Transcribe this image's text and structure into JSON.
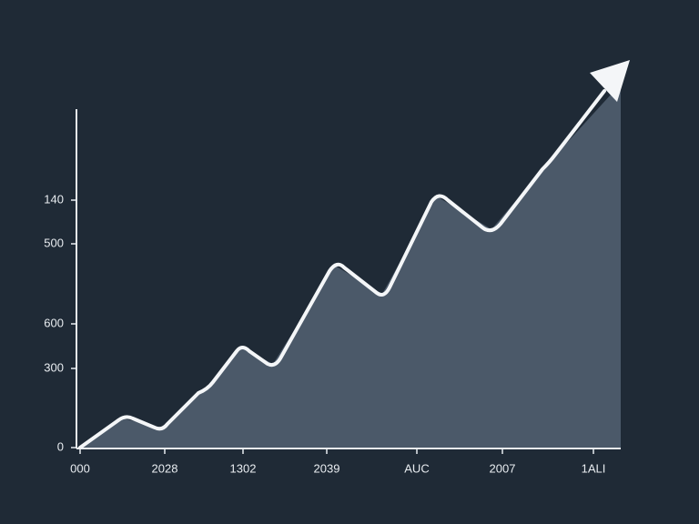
{
  "y_labels": [
    "140",
    "500",
    "600",
    "300",
    "0"
  ],
  "x_labels": [
    "000",
    "2028",
    "1302",
    "2039",
    "AUC",
    "2007",
    "1ALI"
  ]
}
